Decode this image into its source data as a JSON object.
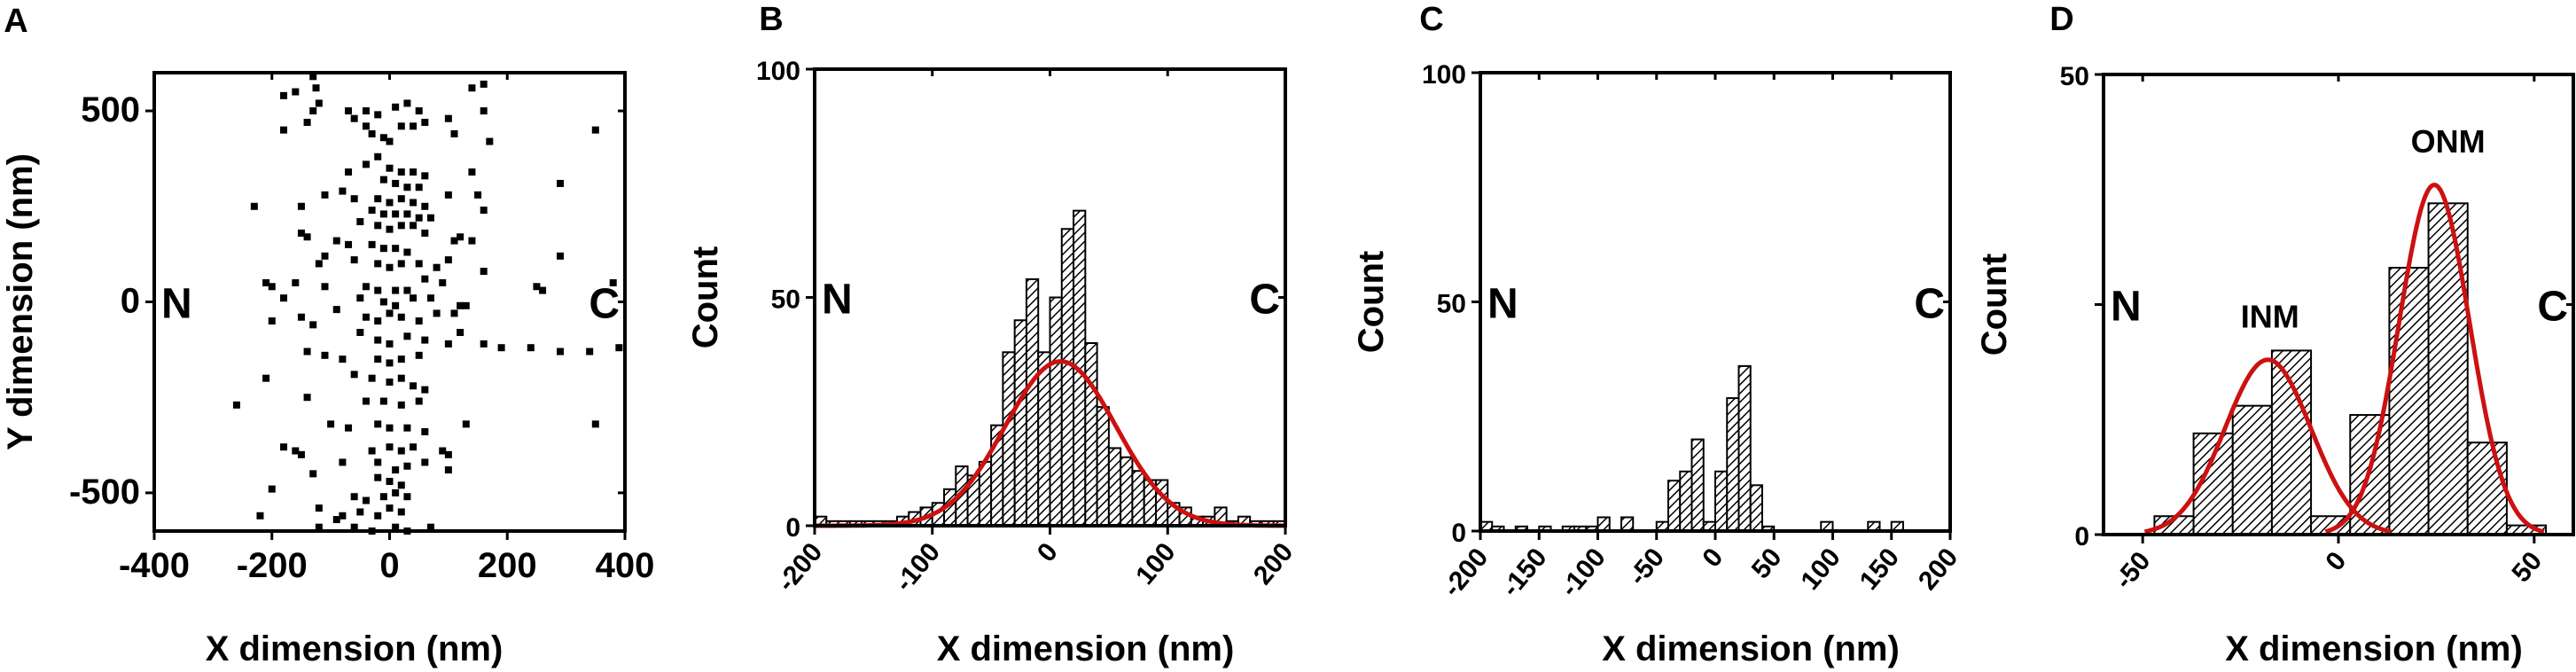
{
  "colors": {
    "fit_curve": "#cc1111",
    "bar_edge": "#000000",
    "points": "#000000"
  },
  "chart_data": [
    {
      "panel": "A",
      "type": "scatter",
      "xlabel": "X dimension (nm)",
      "ylabel": "Y dimension (nm)",
      "xlim": [
        -400,
        400
      ],
      "ylim": [
        -600,
        600
      ],
      "xticks": [
        -400,
        -200,
        0,
        200,
        400
      ],
      "yticks": [
        -500,
        0,
        500
      ],
      "xtick_labels": [
        "-400",
        "-200",
        "0",
        "200",
        "400"
      ],
      "ytick_labels": [
        "-500",
        "0",
        "500"
      ],
      "annotations": {
        "left": "N",
        "right": "C"
      },
      "points": [
        [
          -130,
          590
        ],
        [
          -125,
          560
        ],
        [
          -180,
          540
        ],
        [
          -160,
          550
        ],
        [
          -120,
          520
        ],
        [
          -130,
          500
        ],
        [
          -70,
          500
        ],
        [
          -40,
          500
        ],
        [
          -20,
          490
        ],
        [
          10,
          510
        ],
        [
          30,
          520
        ],
        [
          50,
          500
        ],
        [
          60,
          470
        ],
        [
          100,
          480
        ],
        [
          140,
          560
        ],
        [
          160,
          570
        ],
        [
          160,
          500
        ],
        [
          -60,
          480
        ],
        [
          -40,
          460
        ],
        [
          -30,
          440
        ],
        [
          -10,
          430
        ],
        [
          0,
          420
        ],
        [
          20,
          460
        ],
        [
          40,
          460
        ],
        [
          -180,
          450
        ],
        [
          -140,
          470
        ],
        [
          110,
          440
        ],
        [
          170,
          420
        ],
        [
          350,
          450
        ],
        [
          -20,
          380
        ],
        [
          -40,
          360
        ],
        [
          0,
          350
        ],
        [
          20,
          340
        ],
        [
          40,
          340
        ],
        [
          60,
          330
        ],
        [
          -70,
          340
        ],
        [
          140,
          340
        ],
        [
          -10,
          320
        ],
        [
          10,
          310
        ],
        [
          30,
          300
        ],
        [
          50,
          300
        ],
        [
          -80,
          290
        ],
        [
          290,
          310
        ],
        [
          -110,
          280
        ],
        [
          -60,
          270
        ],
        [
          -20,
          270
        ],
        [
          0,
          260
        ],
        [
          20,
          270
        ],
        [
          40,
          260
        ],
        [
          60,
          250
        ],
        [
          100,
          280
        ],
        [
          150,
          280
        ],
        [
          -230,
          250
        ],
        [
          -150,
          250
        ],
        [
          -30,
          240
        ],
        [
          -10,
          230
        ],
        [
          10,
          230
        ],
        [
          30,
          230
        ],
        [
          50,
          220
        ],
        [
          70,
          220
        ],
        [
          160,
          240
        ],
        [
          -50,
          210
        ],
        [
          -20,
          200
        ],
        [
          0,
          190
        ],
        [
          20,
          200
        ],
        [
          40,
          200
        ],
        [
          60,
          180
        ],
        [
          -150,
          180
        ],
        [
          -140,
          170
        ],
        [
          120,
          170
        ],
        [
          110,
          160
        ],
        [
          140,
          160
        ],
        [
          -90,
          160
        ],
        [
          -70,
          150
        ],
        [
          -30,
          150
        ],
        [
          -10,
          140
        ],
        [
          10,
          140
        ],
        [
          30,
          130
        ],
        [
          -110,
          120
        ],
        [
          -120,
          100
        ],
        [
          -60,
          110
        ],
        [
          -20,
          100
        ],
        [
          0,
          90
        ],
        [
          20,
          100
        ],
        [
          50,
          100
        ],
        [
          100,
          110
        ],
        [
          80,
          90
        ],
        [
          290,
          120
        ],
        [
          160,
          80
        ],
        [
          -210,
          50
        ],
        [
          -200,
          40
        ],
        [
          -160,
          50
        ],
        [
          -110,
          40
        ],
        [
          -40,
          40
        ],
        [
          -20,
          30
        ],
        [
          10,
          30
        ],
        [
          30,
          30
        ],
        [
          60,
          60
        ],
        [
          90,
          50
        ],
        [
          -180,
          10
        ],
        [
          -90,
          -20
        ],
        [
          -50,
          10
        ],
        [
          -10,
          0
        ],
        [
          10,
          -10
        ],
        [
          40,
          10
        ],
        [
          70,
          10
        ],
        [
          380,
          50
        ],
        [
          250,
          40
        ],
        [
          260,
          30
        ],
        [
          120,
          -10
        ],
        [
          130,
          -10
        ],
        [
          -150,
          -40
        ],
        [
          -130,
          -60
        ],
        [
          -40,
          -40
        ],
        [
          -20,
          -50
        ],
        [
          0,
          -30
        ],
        [
          20,
          -40
        ],
        [
          50,
          -50
        ],
        [
          80,
          -30
        ],
        [
          110,
          -30
        ],
        [
          -200,
          -50
        ],
        [
          -50,
          -80
        ],
        [
          -20,
          -100
        ],
        [
          0,
          -110
        ],
        [
          30,
          -90
        ],
        [
          60,
          -100
        ],
        [
          100,
          -110
        ],
        [
          120,
          -80
        ],
        [
          160,
          -110
        ],
        [
          190,
          -120
        ],
        [
          240,
          -120
        ],
        [
          290,
          -130
        ],
        [
          340,
          -130
        ],
        [
          390,
          -120
        ],
        [
          -140,
          -130
        ],
        [
          -110,
          -140
        ],
        [
          -80,
          -150
        ],
        [
          -20,
          -150
        ],
        [
          0,
          -160
        ],
        [
          20,
          -150
        ],
        [
          50,
          -140
        ],
        [
          -210,
          -200
        ],
        [
          -60,
          -190
        ],
        [
          -30,
          -200
        ],
        [
          0,
          -210
        ],
        [
          20,
          -200
        ],
        [
          40,
          -220
        ],
        [
          60,
          -230
        ],
        [
          -140,
          -250
        ],
        [
          -260,
          -270
        ],
        [
          -40,
          -260
        ],
        [
          -10,
          -260
        ],
        [
          20,
          -270
        ],
        [
          50,
          -260
        ],
        [
          -100,
          -320
        ],
        [
          -70,
          -330
        ],
        [
          -20,
          -320
        ],
        [
          0,
          -330
        ],
        [
          30,
          -330
        ],
        [
          60,
          -340
        ],
        [
          130,
          -320
        ],
        [
          350,
          -320
        ],
        [
          -180,
          -380
        ],
        [
          -160,
          -390
        ],
        [
          -150,
          -400
        ],
        [
          -30,
          -390
        ],
        [
          0,
          -380
        ],
        [
          20,
          -390
        ],
        [
          40,
          -380
        ],
        [
          90,
          -390
        ],
        [
          100,
          -400
        ],
        [
          -80,
          -420
        ],
        [
          -20,
          -420
        ],
        [
          10,
          -440
        ],
        [
          30,
          -430
        ],
        [
          60,
          -420
        ],
        [
          100,
          -440
        ],
        [
          -130,
          -450
        ],
        [
          -20,
          -460
        ],
        [
          0,
          -470
        ],
        [
          20,
          -480
        ],
        [
          -200,
          -490
        ],
        [
          -60,
          -510
        ],
        [
          -40,
          -520
        ],
        [
          -10,
          -510
        ],
        [
          10,
          -500
        ],
        [
          30,
          -510
        ],
        [
          -220,
          -560
        ],
        [
          -120,
          -540
        ],
        [
          -80,
          -560
        ],
        [
          -50,
          -550
        ],
        [
          -20,
          -560
        ],
        [
          0,
          -540
        ],
        [
          20,
          -550
        ],
        [
          -120,
          -590
        ],
        [
          -60,
          -590
        ],
        [
          -30,
          -600
        ],
        [
          10,
          -590
        ],
        [
          30,
          -600
        ],
        [
          70,
          -590
        ],
        [
          -90,
          -570
        ]
      ]
    },
    {
      "panel": "B",
      "type": "bar",
      "xlabel": "X dimension (nm)",
      "ylabel": "Count",
      "xlim": [
        -200,
        200
      ],
      "ylim": [
        0,
        100
      ],
      "xticks": [
        -200,
        -100,
        0,
        100,
        200
      ],
      "yticks": [
        0,
        50,
        100
      ],
      "xtick_labels": [
        "-200",
        "-100",
        "0",
        "100",
        "200"
      ],
      "ytick_labels": [
        "0",
        "50",
        "100"
      ],
      "annotations": {
        "left": "N",
        "right": "C"
      },
      "bin_width": 10,
      "bin_centers": [
        -195,
        -185,
        -175,
        -165,
        -155,
        -145,
        -135,
        -125,
        -115,
        -105,
        -95,
        -85,
        -75,
        -65,
        -55,
        -45,
        -35,
        -25,
        -15,
        -5,
        5,
        15,
        25,
        35,
        45,
        55,
        65,
        75,
        85,
        95,
        105,
        115,
        125,
        135,
        145,
        155,
        165,
        175,
        185,
        195
      ],
      "values": [
        2,
        1,
        1,
        1,
        1,
        1,
        1,
        2,
        3,
        4,
        5,
        8,
        13,
        11,
        14,
        22,
        38,
        45,
        54,
        38,
        50,
        65,
        69,
        40,
        26,
        17,
        15,
        12,
        10,
        10,
        5,
        4,
        2,
        2,
        4,
        1,
        2,
        1,
        1,
        1
      ],
      "fits": [
        {
          "type": "gaussian",
          "center": 9,
          "amplitude": 36,
          "sigma": 47
        }
      ]
    },
    {
      "panel": "C",
      "type": "bar",
      "xlabel": "X dimension (nm)",
      "ylabel": "Count",
      "xlim": [
        -200,
        200
      ],
      "ylim": [
        0,
        100
      ],
      "xticks": [
        -200,
        -150,
        -100,
        -50,
        0,
        50,
        100,
        150,
        200
      ],
      "yticks": [
        0,
        50,
        100
      ],
      "xtick_labels": [
        "-200",
        "-150",
        "-100",
        "-50",
        "0",
        "50",
        "100",
        "150",
        "200"
      ],
      "ytick_labels": [
        "0",
        "50",
        "100"
      ],
      "annotations": {
        "left": "N",
        "right": "C"
      },
      "bin_width": 10,
      "bin_centers": [
        -195,
        -185,
        -165,
        -145,
        -125,
        -115,
        -105,
        -95,
        -75,
        -45,
        -35,
        -25,
        -15,
        -5,
        5,
        15,
        25,
        35,
        45,
        95,
        135,
        155
      ],
      "values": [
        2,
        1,
        1,
        1,
        1,
        1,
        1,
        3,
        3,
        2,
        11,
        13,
        20,
        2,
        13,
        29,
        36,
        10,
        1,
        2,
        2,
        2
      ]
    },
    {
      "panel": "D",
      "type": "bar",
      "xlabel": "X dimension (nm)",
      "ylabel": "Count",
      "xlim": [
        -60,
        60
      ],
      "ylim": [
        0,
        50
      ],
      "xticks": [
        -50,
        0,
        50
      ],
      "yticks": [
        0,
        25,
        50
      ],
      "xtick_labels": [
        "-50",
        "0",
        "50"
      ],
      "ytick_labels": [
        "0",
        "",
        "50"
      ],
      "annotations": {
        "left": "N",
        "right": "C",
        "peak1": "INM",
        "peak2": "ONM"
      },
      "bin_width": 10,
      "bin_centers": [
        -42,
        -32,
        -22,
        -12,
        -2,
        8,
        18,
        28,
        38,
        48
      ],
      "values": [
        2,
        11,
        14,
        20,
        2,
        13,
        29,
        36,
        10,
        1
      ],
      "fits": [
        {
          "type": "gaussian",
          "label": "INM",
          "center": -18,
          "amplitude": 19,
          "sigma": 11
        },
        {
          "type": "gaussian",
          "label": "ONM",
          "center": 24.5,
          "amplitude": 38,
          "sigma": 9
        }
      ]
    }
  ]
}
